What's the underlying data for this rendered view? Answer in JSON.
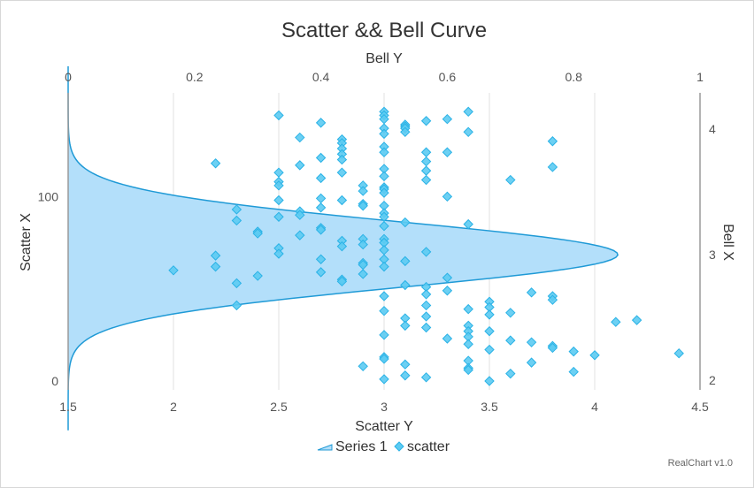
{
  "chart_data": {
    "type": "scatter",
    "title": "Scatter && Bell Curve",
    "credit": "RealChart v1.0",
    "axes": {
      "x_bottom": {
        "label": "Scatter Y",
        "range": [
          1.5,
          4.5
        ],
        "ticks": [
          1.5,
          2,
          2.5,
          3,
          3.5,
          4,
          4.5
        ],
        "tick_labels": [
          "1.5",
          "2",
          "2.5",
          "3",
          "3.5",
          "4",
          "4.5"
        ],
        "grid": true
      },
      "y_left": {
        "label": "Scatter X",
        "range": [
          0,
          150
        ],
        "ticks": [
          0,
          100
        ],
        "tick_labels": [
          "0",
          "100"
        ]
      },
      "x_top": {
        "label": "Bell Y",
        "range": [
          0,
          1
        ],
        "ticks": [
          0,
          0.2,
          0.4,
          0.6,
          0.8,
          1
        ],
        "tick_labels": [
          "0",
          "0.2",
          "0.4",
          "0.6",
          "0.8",
          "1"
        ]
      },
      "y_right": {
        "label": "Bell X",
        "range": [
          1.5,
          4.5
        ],
        "ticks": [
          2,
          3,
          4
        ],
        "tick_labels": [
          "2",
          "3",
          "4"
        ]
      }
    },
    "legend": {
      "placement": "bottom-center",
      "entries": [
        "Series 1",
        "scatter"
      ]
    },
    "series": [
      {
        "name": "Series 1",
        "type": "area",
        "color": "#1f9ad6",
        "fill": "#b3dffa",
        "axes": [
          "x_top",
          "y_right"
        ],
        "mean": 3.0,
        "stddev": 0.26,
        "bell_x_range": [
          1.6,
          4.5
        ],
        "peak_bell_y": 0.87
      },
      {
        "name": "scatter",
        "type": "scatter",
        "marker": "diamond",
        "color": "#5ccbf2",
        "stroke": "#2ab2e6",
        "axes": [
          "x_bottom",
          "y_left"
        ],
        "points": [
          [
            2.0,
            60
          ],
          [
            2.2,
            118
          ],
          [
            2.2,
            68
          ],
          [
            2.2,
            62
          ],
          [
            2.3,
            93
          ],
          [
            2.3,
            87
          ],
          [
            2.3,
            53
          ],
          [
            2.3,
            41
          ],
          [
            2.4,
            81
          ],
          [
            2.4,
            80
          ],
          [
            2.4,
            57
          ],
          [
            2.5,
            144
          ],
          [
            2.5,
            113
          ],
          [
            2.5,
            108
          ],
          [
            2.5,
            106
          ],
          [
            2.5,
            98
          ],
          [
            2.5,
            89
          ],
          [
            2.5,
            72
          ],
          [
            2.5,
            69
          ],
          [
            2.6,
            132
          ],
          [
            2.6,
            117
          ],
          [
            2.6,
            92
          ],
          [
            2.6,
            90
          ],
          [
            2.6,
            79
          ],
          [
            2.7,
            140
          ],
          [
            2.7,
            121
          ],
          [
            2.7,
            110
          ],
          [
            2.7,
            99
          ],
          [
            2.7,
            94
          ],
          [
            2.7,
            83
          ],
          [
            2.7,
            82
          ],
          [
            2.7,
            66
          ],
          [
            2.7,
            59
          ],
          [
            2.8,
            131
          ],
          [
            2.8,
            129
          ],
          [
            2.8,
            126
          ],
          [
            2.8,
            123
          ],
          [
            2.8,
            120
          ],
          [
            2.8,
            113
          ],
          [
            2.8,
            98
          ],
          [
            2.8,
            76
          ],
          [
            2.8,
            73
          ],
          [
            2.8,
            55
          ],
          [
            2.8,
            54
          ],
          [
            2.9,
            106
          ],
          [
            2.9,
            103
          ],
          [
            2.9,
            96
          ],
          [
            2.9,
            95
          ],
          [
            2.9,
            77
          ],
          [
            2.9,
            74
          ],
          [
            2.9,
            64
          ],
          [
            2.9,
            63
          ],
          [
            2.9,
            58
          ],
          [
            2.9,
            8
          ],
          [
            3.0,
            146
          ],
          [
            3.0,
            144
          ],
          [
            3.0,
            142
          ],
          [
            3.0,
            137
          ],
          [
            3.0,
            134
          ],
          [
            3.0,
            127
          ],
          [
            3.0,
            124
          ],
          [
            3.0,
            115
          ],
          [
            3.0,
            111
          ],
          [
            3.0,
            105
          ],
          [
            3.0,
            104
          ],
          [
            3.0,
            102
          ],
          [
            3.0,
            95
          ],
          [
            3.0,
            91
          ],
          [
            3.0,
            89
          ],
          [
            3.0,
            84
          ],
          [
            3.0,
            77
          ],
          [
            3.0,
            75
          ],
          [
            3.0,
            71
          ],
          [
            3.0,
            66
          ],
          [
            3.0,
            62
          ],
          [
            3.0,
            46
          ],
          [
            3.0,
            38
          ],
          [
            3.0,
            25
          ],
          [
            3.0,
            13
          ],
          [
            3.0,
            12
          ],
          [
            3.0,
            1
          ],
          [
            3.1,
            139
          ],
          [
            3.1,
            138
          ],
          [
            3.1,
            137
          ],
          [
            3.1,
            135
          ],
          [
            3.1,
            86
          ],
          [
            3.1,
            65
          ],
          [
            3.1,
            52
          ],
          [
            3.1,
            34
          ],
          [
            3.1,
            30
          ],
          [
            3.1,
            9
          ],
          [
            3.1,
            3
          ],
          [
            3.2,
            141
          ],
          [
            3.2,
            124
          ],
          [
            3.2,
            119
          ],
          [
            3.2,
            114
          ],
          [
            3.2,
            109
          ],
          [
            3.2,
            70
          ],
          [
            3.2,
            51
          ],
          [
            3.2,
            47
          ],
          [
            3.2,
            41
          ],
          [
            3.2,
            35
          ],
          [
            3.2,
            29
          ],
          [
            3.2,
            2
          ],
          [
            3.3,
            142
          ],
          [
            3.3,
            124
          ],
          [
            3.3,
            100
          ],
          [
            3.3,
            56
          ],
          [
            3.3,
            49
          ],
          [
            3.3,
            23
          ],
          [
            3.4,
            146
          ],
          [
            3.4,
            135
          ],
          [
            3.4,
            85
          ],
          [
            3.4,
            39
          ],
          [
            3.4,
            30
          ],
          [
            3.4,
            27
          ],
          [
            3.4,
            24
          ],
          [
            3.4,
            20
          ],
          [
            3.4,
            11
          ],
          [
            3.4,
            7
          ],
          [
            3.4,
            6
          ],
          [
            3.5,
            43
          ],
          [
            3.5,
            40
          ],
          [
            3.5,
            36
          ],
          [
            3.5,
            27
          ],
          [
            3.5,
            17
          ],
          [
            3.5,
            0
          ],
          [
            3.6,
            109
          ],
          [
            3.6,
            37
          ],
          [
            3.6,
            22
          ],
          [
            3.6,
            4
          ],
          [
            3.7,
            48
          ],
          [
            3.7,
            21
          ],
          [
            3.7,
            10
          ],
          [
            3.8,
            130
          ],
          [
            3.8,
            116
          ],
          [
            3.8,
            46
          ],
          [
            3.8,
            44
          ],
          [
            3.8,
            19
          ],
          [
            3.8,
            18
          ],
          [
            3.9,
            16
          ],
          [
            3.9,
            5
          ],
          [
            4.0,
            14
          ],
          [
            4.1,
            32
          ],
          [
            4.2,
            33
          ],
          [
            4.4,
            15
          ]
        ]
      }
    ]
  }
}
